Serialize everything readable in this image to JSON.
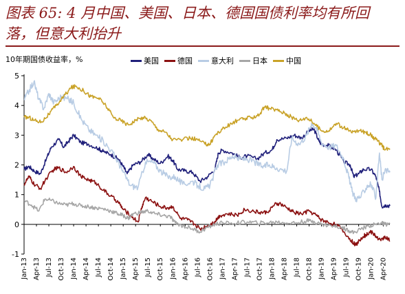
{
  "header": {
    "title": "图表 65: 4 月中国、美国、日本、德国国债利率均有所回\n落，但意大利抬升"
  },
  "chart_data": {
    "type": "line",
    "ylabel": "10年期国债收益率，%",
    "ylim": [
      -1,
      5
    ],
    "yticks": [
      5,
      4,
      3,
      2,
      1,
      0,
      -1
    ],
    "xlim": [
      2013.0,
      2020.38
    ],
    "xtick_labels": [
      "Jan-13",
      "Apr-13",
      "Jul-13",
      "Oct-13",
      "Jan-14",
      "Apr-14",
      "Jul-14",
      "Oct-14",
      "Jan-15",
      "Apr-15",
      "Jul-15",
      "Oct-15",
      "Jan-16",
      "Apr-16",
      "Jul-16",
      "Oct-16",
      "Jan-17",
      "Apr-17",
      "Jul-17",
      "Oct-17",
      "Jan-18",
      "Apr-18",
      "Jul-18",
      "Oct-18",
      "Jan-19",
      "Apr-19",
      "Jul-19",
      "Oct-19",
      "Jan-20",
      "Apr-20"
    ],
    "legend_position": "top-center",
    "series": [
      {
        "name": "美国",
        "color": "#1f1f7a",
        "points": [
          [
            2013.0,
            1.85
          ],
          [
            2013.1,
            1.95
          ],
          [
            2013.2,
            1.8
          ],
          [
            2013.33,
            1.7
          ],
          [
            2013.45,
            2.2
          ],
          [
            2013.55,
            2.6
          ],
          [
            2013.7,
            2.85
          ],
          [
            2013.8,
            2.6
          ],
          [
            2013.9,
            2.8
          ],
          [
            2014.0,
            3.0
          ],
          [
            2014.15,
            2.75
          ],
          [
            2014.3,
            2.7
          ],
          [
            2014.5,
            2.55
          ],
          [
            2014.6,
            2.45
          ],
          [
            2014.75,
            2.35
          ],
          [
            2014.9,
            2.2
          ],
          [
            2015.0,
            1.95
          ],
          [
            2015.08,
            1.7
          ],
          [
            2015.2,
            2.0
          ],
          [
            2015.35,
            2.1
          ],
          [
            2015.5,
            2.35
          ],
          [
            2015.6,
            2.2
          ],
          [
            2015.75,
            2.05
          ],
          [
            2015.9,
            2.3
          ],
          [
            2016.0,
            2.15
          ],
          [
            2016.1,
            1.85
          ],
          [
            2016.25,
            1.8
          ],
          [
            2016.4,
            1.75
          ],
          [
            2016.55,
            1.45
          ],
          [
            2016.7,
            1.6
          ],
          [
            2016.85,
            1.85
          ],
          [
            2016.92,
            2.4
          ],
          [
            2017.0,
            2.5
          ],
          [
            2017.2,
            2.4
          ],
          [
            2017.35,
            2.25
          ],
          [
            2017.5,
            2.3
          ],
          [
            2017.7,
            2.2
          ],
          [
            2017.85,
            2.4
          ],
          [
            2018.0,
            2.5
          ],
          [
            2018.1,
            2.85
          ],
          [
            2018.3,
            2.9
          ],
          [
            2018.45,
            3.0
          ],
          [
            2018.6,
            2.9
          ],
          [
            2018.75,
            3.15
          ],
          [
            2018.85,
            3.2
          ],
          [
            2018.95,
            2.8
          ],
          [
            2019.0,
            2.7
          ],
          [
            2019.15,
            2.65
          ],
          [
            2019.3,
            2.5
          ],
          [
            2019.45,
            2.1
          ],
          [
            2019.58,
            2.0
          ],
          [
            2019.65,
            1.6
          ],
          [
            2019.75,
            1.7
          ],
          [
            2019.85,
            1.85
          ],
          [
            2020.0,
            1.85
          ],
          [
            2020.1,
            1.6
          ],
          [
            2020.17,
            1.1
          ],
          [
            2020.22,
            0.6
          ],
          [
            2020.3,
            0.65
          ],
          [
            2020.38,
            0.62
          ]
        ]
      },
      {
        "name": "德国",
        "color": "#8b1010",
        "points": [
          [
            2013.0,
            1.35
          ],
          [
            2013.1,
            1.6
          ],
          [
            2013.2,
            1.35
          ],
          [
            2013.33,
            1.2
          ],
          [
            2013.45,
            1.55
          ],
          [
            2013.6,
            1.85
          ],
          [
            2013.7,
            1.9
          ],
          [
            2013.85,
            1.75
          ],
          [
            2014.0,
            1.95
          ],
          [
            2014.15,
            1.6
          ],
          [
            2014.3,
            1.5
          ],
          [
            2014.45,
            1.4
          ],
          [
            2014.6,
            1.15
          ],
          [
            2014.75,
            0.95
          ],
          [
            2014.9,
            0.75
          ],
          [
            2015.0,
            0.5
          ],
          [
            2015.15,
            0.3
          ],
          [
            2015.3,
            0.08
          ],
          [
            2015.38,
            0.6
          ],
          [
            2015.45,
            0.9
          ],
          [
            2015.6,
            0.75
          ],
          [
            2015.75,
            0.6
          ],
          [
            2015.9,
            0.55
          ],
          [
            2016.0,
            0.6
          ],
          [
            2016.15,
            0.2
          ],
          [
            2016.3,
            0.15
          ],
          [
            2016.45,
            0.0
          ],
          [
            2016.55,
            -0.15
          ],
          [
            2016.7,
            -0.05
          ],
          [
            2016.85,
            0.1
          ],
          [
            2016.95,
            0.3
          ],
          [
            2017.1,
            0.35
          ],
          [
            2017.3,
            0.3
          ],
          [
            2017.45,
            0.5
          ],
          [
            2017.6,
            0.45
          ],
          [
            2017.75,
            0.4
          ],
          [
            2017.9,
            0.4
          ],
          [
            2018.05,
            0.65
          ],
          [
            2018.15,
            0.7
          ],
          [
            2018.3,
            0.55
          ],
          [
            2018.45,
            0.4
          ],
          [
            2018.6,
            0.35
          ],
          [
            2018.75,
            0.45
          ],
          [
            2018.9,
            0.3
          ],
          [
            2019.0,
            0.15
          ],
          [
            2019.15,
            0.05
          ],
          [
            2019.3,
            0.0
          ],
          [
            2019.45,
            -0.25
          ],
          [
            2019.6,
            -0.55
          ],
          [
            2019.7,
            -0.7
          ],
          [
            2019.8,
            -0.45
          ],
          [
            2019.9,
            -0.35
          ],
          [
            2020.0,
            -0.25
          ],
          [
            2020.1,
            -0.4
          ],
          [
            2020.2,
            -0.55
          ],
          [
            2020.28,
            -0.4
          ],
          [
            2020.38,
            -0.55
          ]
        ]
      },
      {
        "name": "意大利",
        "color": "#b8cce4",
        "points": [
          [
            2013.0,
            4.2
          ],
          [
            2013.1,
            4.5
          ],
          [
            2013.2,
            4.8
          ],
          [
            2013.3,
            4.2
          ],
          [
            2013.4,
            3.9
          ],
          [
            2013.5,
            4.4
          ],
          [
            2013.6,
            4.1
          ],
          [
            2013.75,
            4.3
          ],
          [
            2013.9,
            4.2
          ],
          [
            2014.0,
            4.1
          ],
          [
            2014.15,
            3.55
          ],
          [
            2014.3,
            3.2
          ],
          [
            2014.45,
            3.0
          ],
          [
            2014.6,
            2.8
          ],
          [
            2014.75,
            2.5
          ],
          [
            2014.9,
            2.1
          ],
          [
            2015.0,
            1.75
          ],
          [
            2015.15,
            1.3
          ],
          [
            2015.3,
            1.25
          ],
          [
            2015.45,
            2.1
          ],
          [
            2015.6,
            2.1
          ],
          [
            2015.75,
            1.8
          ],
          [
            2015.9,
            1.6
          ],
          [
            2016.05,
            1.6
          ],
          [
            2016.2,
            1.35
          ],
          [
            2016.4,
            1.45
          ],
          [
            2016.5,
            1.3
          ],
          [
            2016.65,
            1.2
          ],
          [
            2016.75,
            1.3
          ],
          [
            2016.9,
            2.0
          ],
          [
            2017.05,
            2.1
          ],
          [
            2017.2,
            2.3
          ],
          [
            2017.35,
            2.2
          ],
          [
            2017.5,
            2.2
          ],
          [
            2017.65,
            2.1
          ],
          [
            2017.8,
            1.95
          ],
          [
            2017.95,
            2.0
          ],
          [
            2018.1,
            1.9
          ],
          [
            2018.3,
            1.8
          ],
          [
            2018.4,
            2.9
          ],
          [
            2018.55,
            2.7
          ],
          [
            2018.7,
            3.0
          ],
          [
            2018.8,
            3.4
          ],
          [
            2018.9,
            3.25
          ],
          [
            2019.0,
            2.75
          ],
          [
            2019.15,
            2.6
          ],
          [
            2019.3,
            2.65
          ],
          [
            2019.45,
            2.2
          ],
          [
            2019.55,
            1.6
          ],
          [
            2019.62,
            1.1
          ],
          [
            2019.7,
            0.85
          ],
          [
            2019.8,
            0.95
          ],
          [
            2019.92,
            1.3
          ],
          [
            2020.0,
            1.35
          ],
          [
            2020.1,
            0.9
          ],
          [
            2020.17,
            2.4
          ],
          [
            2020.22,
            1.5
          ],
          [
            2020.3,
            1.85
          ],
          [
            2020.38,
            1.75
          ]
        ]
      },
      {
        "name": "日本",
        "color": "#a6a6a6",
        "points": [
          [
            2013.0,
            0.8
          ],
          [
            2013.15,
            0.65
          ],
          [
            2013.3,
            0.45
          ],
          [
            2013.42,
            0.85
          ],
          [
            2013.55,
            0.8
          ],
          [
            2013.7,
            0.7
          ],
          [
            2013.85,
            0.65
          ],
          [
            2014.0,
            0.7
          ],
          [
            2014.15,
            0.62
          ],
          [
            2014.3,
            0.6
          ],
          [
            2014.45,
            0.55
          ],
          [
            2014.6,
            0.52
          ],
          [
            2014.75,
            0.45
          ],
          [
            2014.9,
            0.35
          ],
          [
            2015.0,
            0.3
          ],
          [
            2015.1,
            0.2
          ],
          [
            2015.2,
            0.35
          ],
          [
            2015.35,
            0.4
          ],
          [
            2015.5,
            0.45
          ],
          [
            2015.65,
            0.35
          ],
          [
            2015.8,
            0.3
          ],
          [
            2015.95,
            0.25
          ],
          [
            2016.05,
            0.05
          ],
          [
            2016.2,
            -0.05
          ],
          [
            2016.4,
            -0.15
          ],
          [
            2016.55,
            -0.25
          ],
          [
            2016.7,
            -0.1
          ],
          [
            2016.85,
            0.0
          ],
          [
            2017.0,
            0.05
          ],
          [
            2017.3,
            0.05
          ],
          [
            2017.5,
            0.08
          ],
          [
            2017.7,
            0.05
          ],
          [
            2017.9,
            0.05
          ],
          [
            2018.1,
            0.08
          ],
          [
            2018.3,
            0.05
          ],
          [
            2018.5,
            0.05
          ],
          [
            2018.7,
            0.12
          ],
          [
            2018.85,
            0.1
          ],
          [
            2019.0,
            0.0
          ],
          [
            2019.2,
            -0.05
          ],
          [
            2019.4,
            -0.1
          ],
          [
            2019.55,
            -0.2
          ],
          [
            2019.65,
            -0.28
          ],
          [
            2019.8,
            -0.15
          ],
          [
            2019.95,
            -0.05
          ],
          [
            2020.1,
            0.0
          ],
          [
            2020.2,
            0.05
          ],
          [
            2020.28,
            0.0
          ],
          [
            2020.38,
            0.02
          ]
        ]
      },
      {
        "name": "中国",
        "color": "#c9a227",
        "points": [
          [
            2013.0,
            3.6
          ],
          [
            2013.1,
            3.6
          ],
          [
            2013.2,
            3.5
          ],
          [
            2013.35,
            3.45
          ],
          [
            2013.5,
            3.7
          ],
          [
            2013.65,
            4.0
          ],
          [
            2013.8,
            4.3
          ],
          [
            2013.95,
            4.6
          ],
          [
            2014.05,
            4.65
          ],
          [
            2014.2,
            4.5
          ],
          [
            2014.35,
            4.3
          ],
          [
            2014.5,
            4.25
          ],
          [
            2014.65,
            4.0
          ],
          [
            2014.8,
            3.6
          ],
          [
            2014.95,
            3.5
          ],
          [
            2015.1,
            3.35
          ],
          [
            2015.25,
            3.5
          ],
          [
            2015.4,
            3.6
          ],
          [
            2015.55,
            3.5
          ],
          [
            2015.7,
            3.2
          ],
          [
            2015.85,
            3.1
          ],
          [
            2016.0,
            2.85
          ],
          [
            2016.2,
            2.85
          ],
          [
            2016.35,
            2.9
          ],
          [
            2016.5,
            2.85
          ],
          [
            2016.65,
            2.7
          ],
          [
            2016.75,
            2.7
          ],
          [
            2016.85,
            3.0
          ],
          [
            2017.0,
            3.2
          ],
          [
            2017.15,
            3.35
          ],
          [
            2017.3,
            3.5
          ],
          [
            2017.45,
            3.55
          ],
          [
            2017.6,
            3.6
          ],
          [
            2017.75,
            3.7
          ],
          [
            2017.85,
            3.95
          ],
          [
            2017.95,
            3.9
          ],
          [
            2018.1,
            3.85
          ],
          [
            2018.25,
            3.75
          ],
          [
            2018.4,
            3.6
          ],
          [
            2018.55,
            3.5
          ],
          [
            2018.7,
            3.6
          ],
          [
            2018.85,
            3.4
          ],
          [
            2019.0,
            3.15
          ],
          [
            2019.15,
            3.15
          ],
          [
            2019.3,
            3.4
          ],
          [
            2019.45,
            3.25
          ],
          [
            2019.6,
            3.1
          ],
          [
            2019.75,
            3.15
          ],
          [
            2019.9,
            3.1
          ],
          [
            2020.0,
            3.0
          ],
          [
            2020.1,
            2.85
          ],
          [
            2020.2,
            2.7
          ],
          [
            2020.28,
            2.5
          ],
          [
            2020.38,
            2.55
          ]
        ]
      }
    ]
  }
}
